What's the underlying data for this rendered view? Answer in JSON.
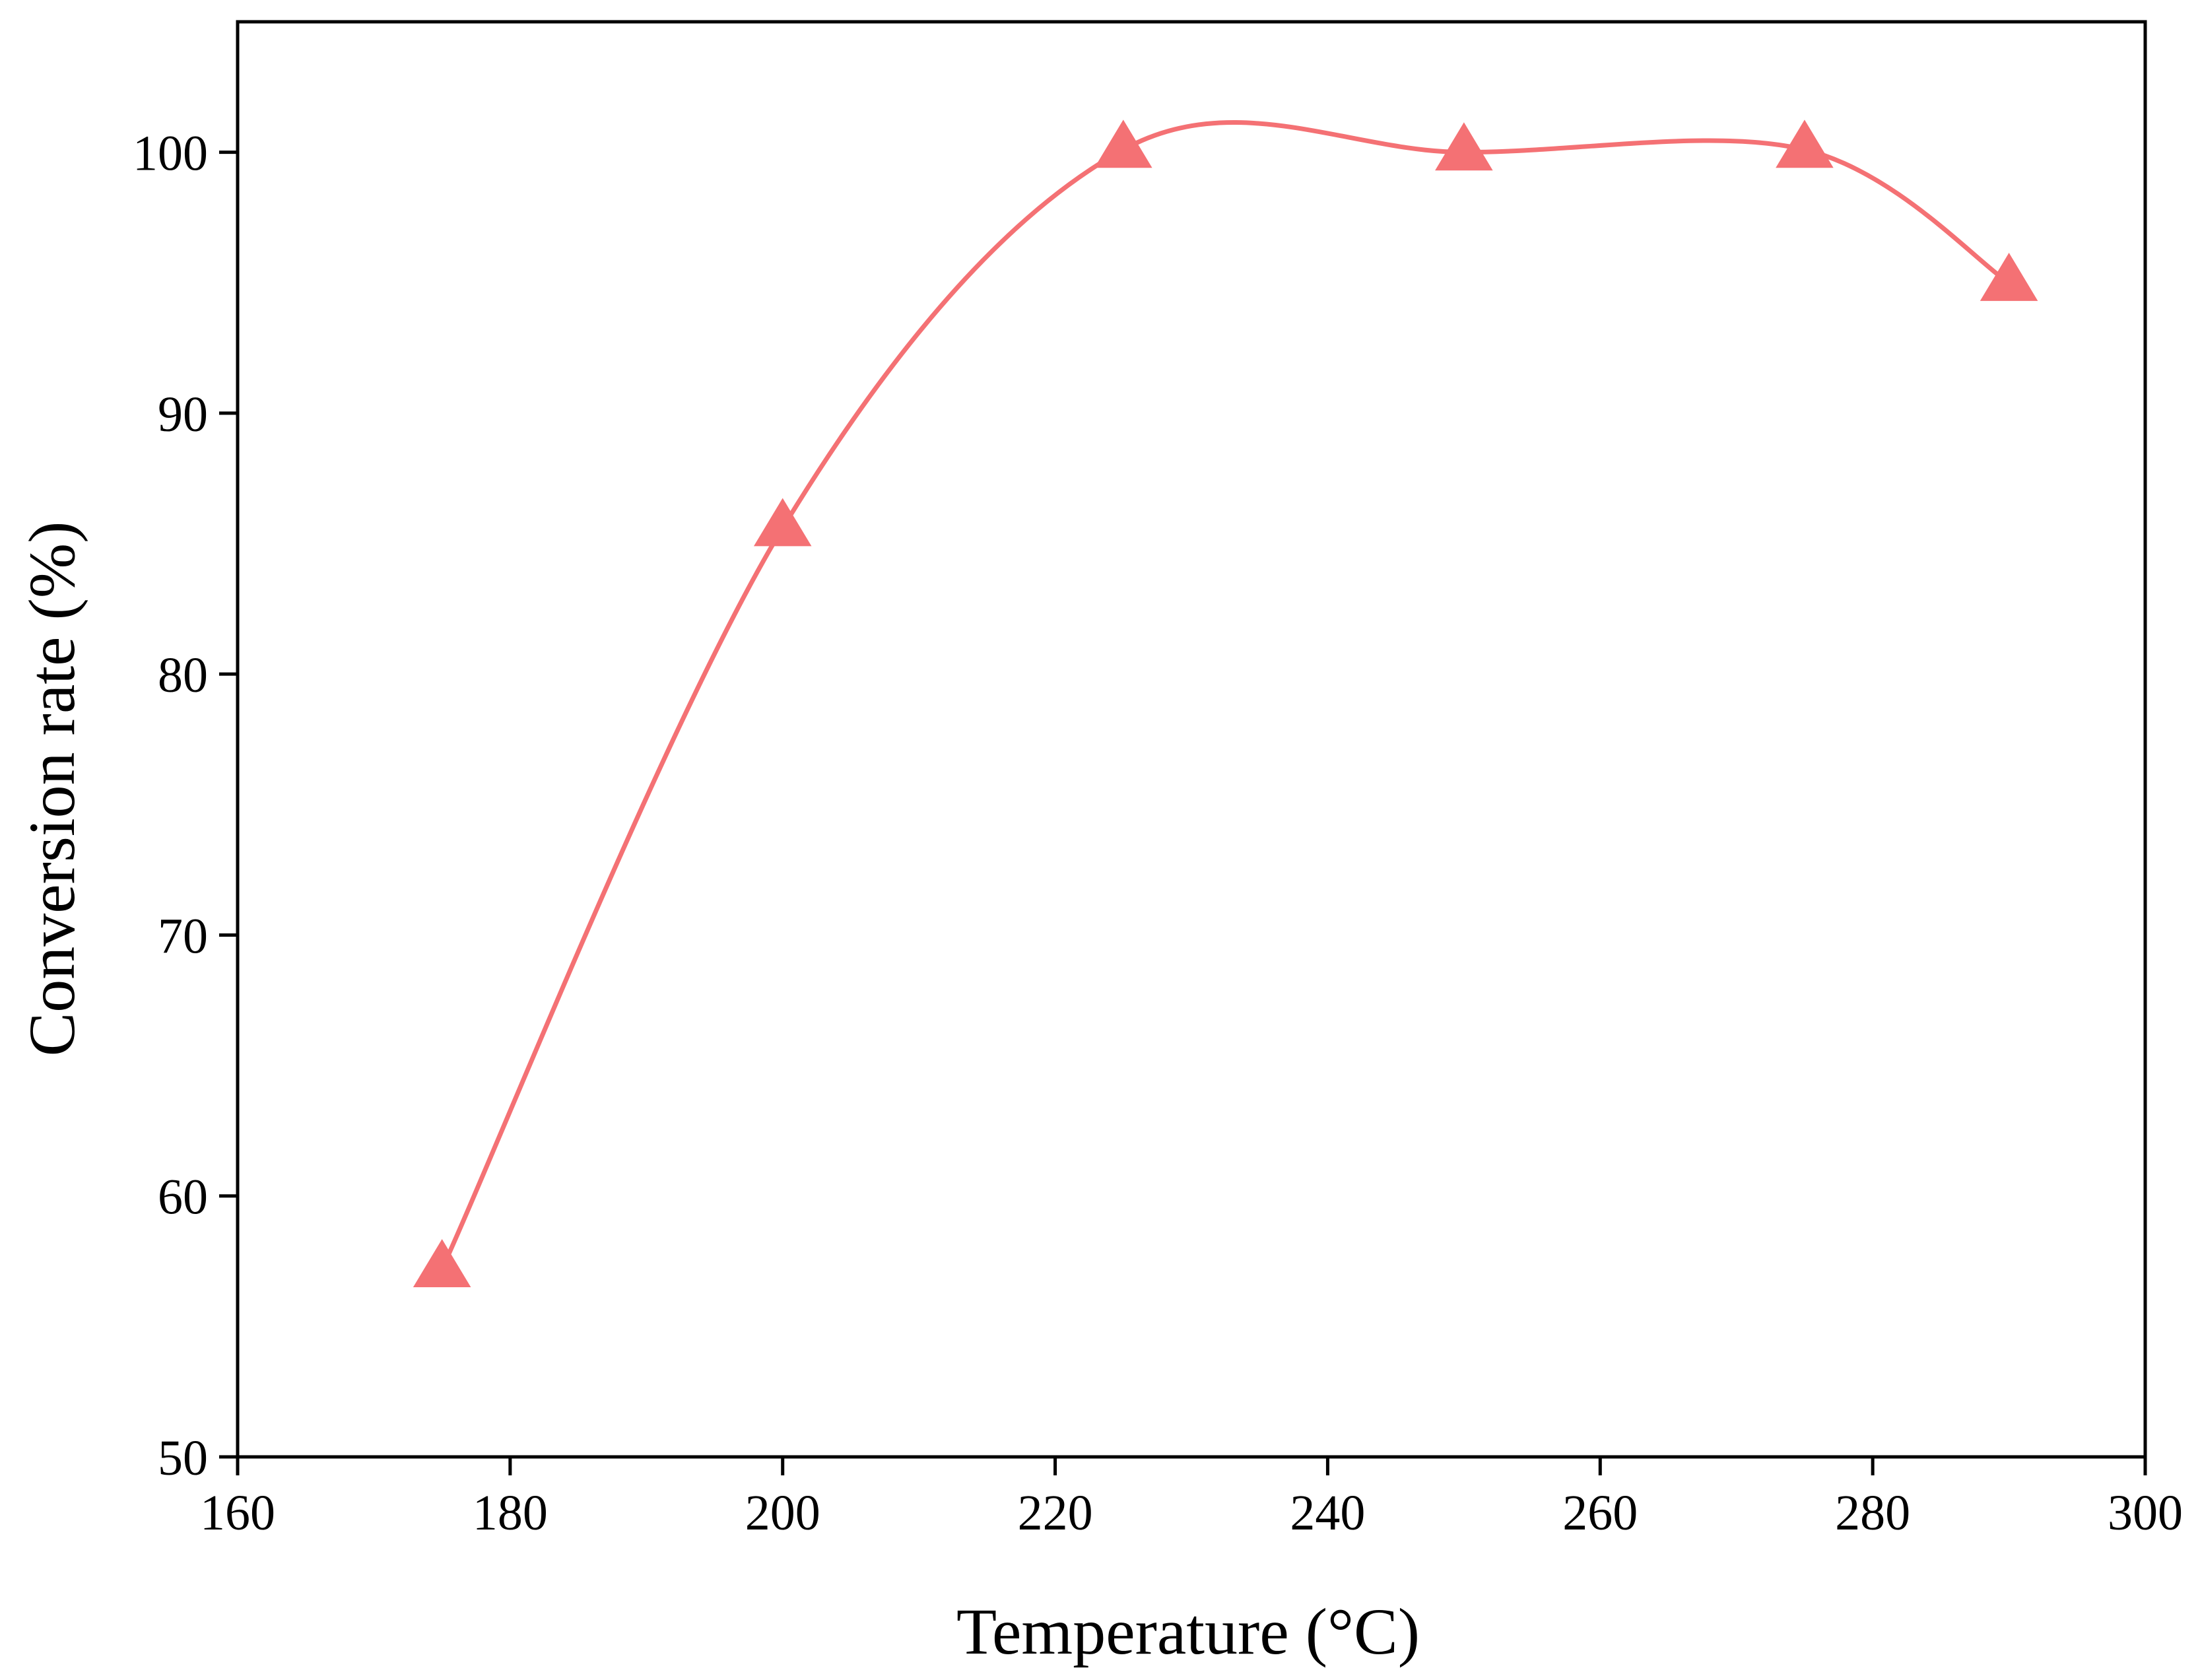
{
  "chart_data": {
    "type": "line",
    "xlabel": "Temperature (°C)",
    "ylabel": "Conversion rate (%)",
    "xlim": [
      160,
      300
    ],
    "ylim": [
      50,
      105
    ],
    "x_ticks": [
      160,
      180,
      200,
      220,
      240,
      260,
      280,
      300
    ],
    "y_ticks": [
      50,
      60,
      70,
      80,
      90,
      100
    ],
    "grid": false,
    "series": [
      {
        "marker": "triangle",
        "color": "#F47174",
        "smooth": true,
        "x": [
          175,
          200,
          225,
          250,
          275,
          290
        ],
        "y": [
          57.2,
          85.6,
          100.1,
          100.0,
          100.1,
          95.0
        ]
      }
    ]
  }
}
